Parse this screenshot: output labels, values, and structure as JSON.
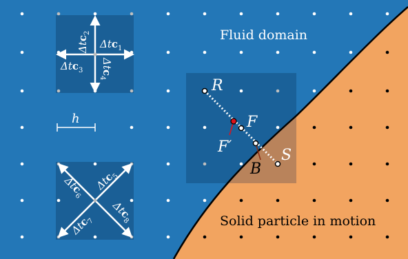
{
  "colors": {
    "fluid": "#2377b7",
    "solid": "#f2a460",
    "cell": "#1a5f96",
    "cell_solid_overlay": "#b9835b",
    "node_fluid": "#ffffff",
    "node_boundary": "#bfbfbf",
    "node_solid": "#000000",
    "link": "#ffffff",
    "point_F_prime": "#e0121a",
    "point_B_marker": "#8a2a10",
    "boundary": "#000000"
  },
  "labels": {
    "fluid_domain": "Fluid domain",
    "solid_particle": "Solid particle in motion",
    "spacing": "h",
    "point_R": "R",
    "point_F": "F",
    "point_F_prime": "F′",
    "point_B": "B",
    "point_S": "S"
  },
  "velocity_labels": {
    "c1": {
      "prefix": "Δt",
      "vec": "c",
      "sub": "1"
    },
    "c2": {
      "prefix": "Δt",
      "vec": "c",
      "sub": "2"
    },
    "c3": {
      "prefix": "Δt",
      "vec": "c",
      "sub": "3"
    },
    "c4": {
      "prefix": "Δt",
      "vec": "c",
      "sub": "4"
    },
    "c5": {
      "prefix": "Δt",
      "vec": "c",
      "sub": "5"
    },
    "c6": {
      "prefix": "Δt",
      "vec": "c",
      "sub": "6"
    },
    "c7": {
      "prefix": "Δt",
      "vec": "c",
      "sub": "7"
    },
    "c8": {
      "prefix": "Δt",
      "vec": "c",
      "sub": "8"
    }
  }
}
